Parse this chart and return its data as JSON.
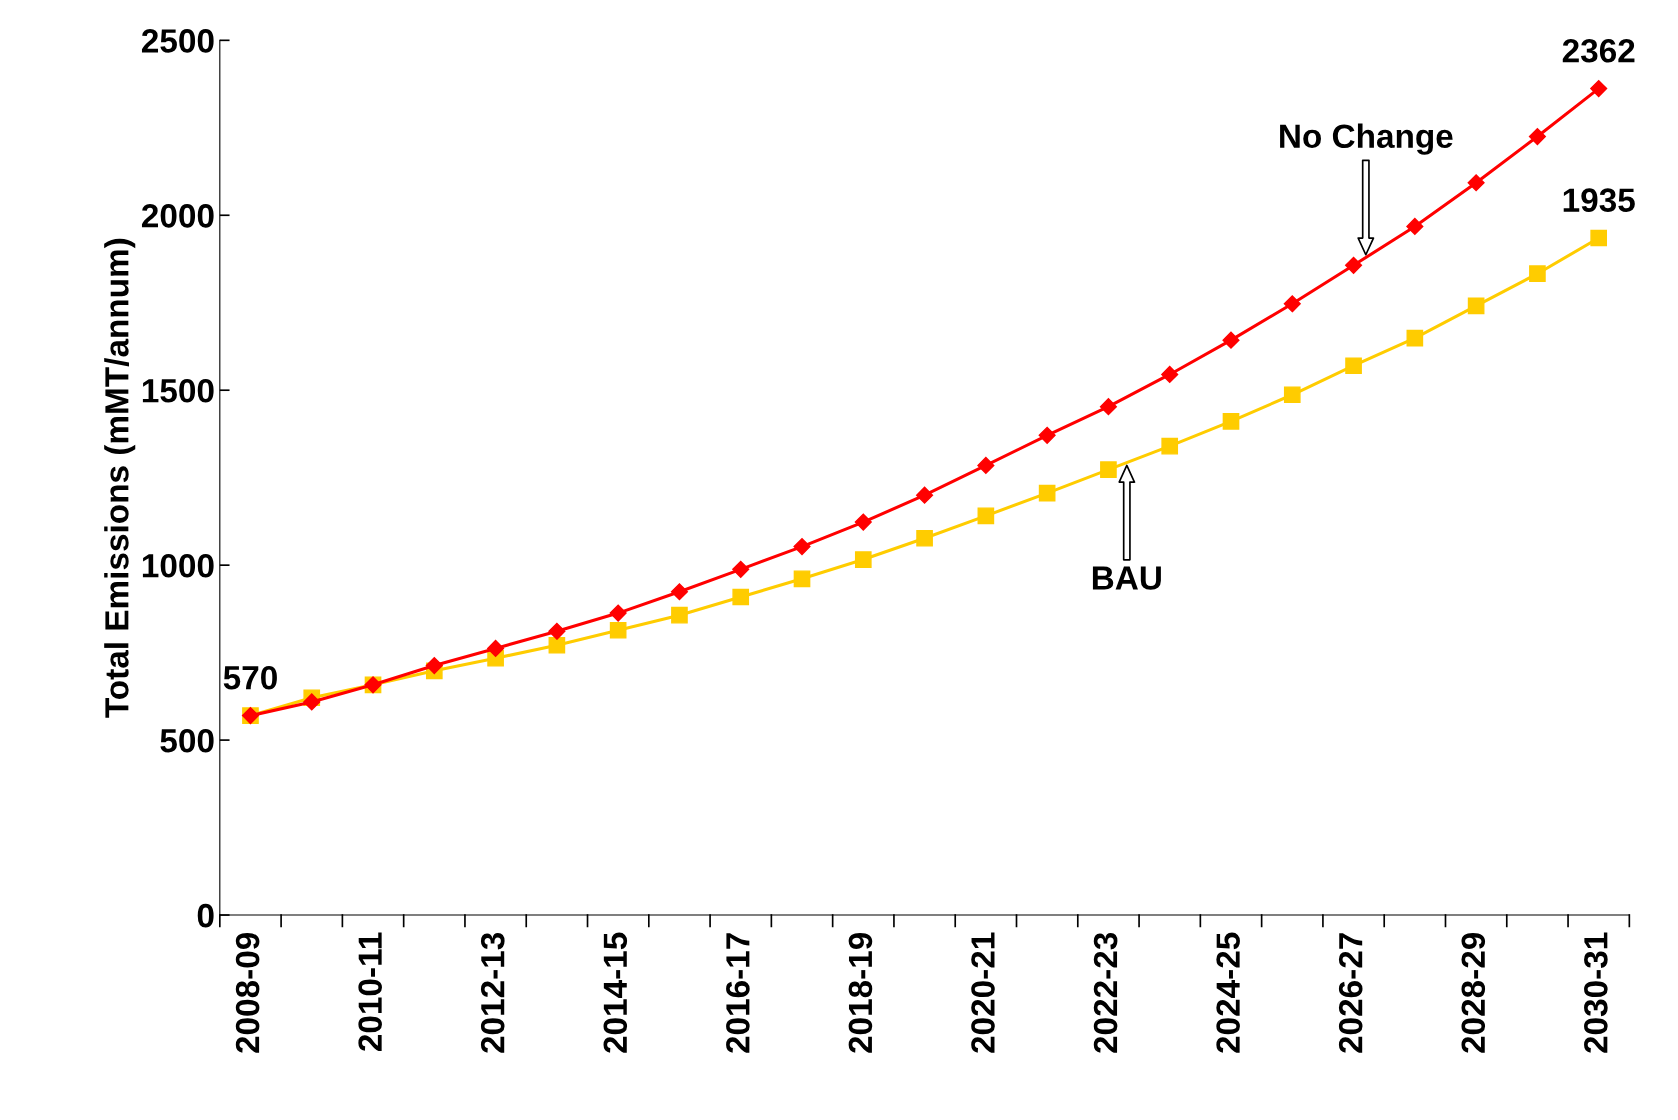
{
  "chart_data": {
    "type": "line",
    "ylabel": "Total Emissions (mMT/annum)",
    "categories": [
      "2008-09",
      null,
      "2010-11",
      null,
      "2012-13",
      null,
      "2014-15",
      null,
      "2016-17",
      null,
      "2018-19",
      null,
      "2020-21",
      null,
      "2022-23",
      null,
      "2024-25",
      null,
      "2026-27",
      null,
      "2028-29",
      null,
      "2030-31"
    ],
    "series": [
      {
        "name": "No Change",
        "color": "#ff0000",
        "marker": "diamond",
        "values": [
          570,
          609,
          658,
          713,
          762,
          811,
          863,
          924,
          988,
          1053,
          1123,
          1200,
          1285,
          1371,
          1453,
          1545,
          1643,
          1747,
          1857,
          1968,
          2093,
          2225,
          2362
        ],
        "value_labels": [
          "570",
          null,
          null,
          null,
          null,
          null,
          null,
          null,
          null,
          null,
          null,
          null,
          null,
          null,
          null,
          null,
          null,
          null,
          null,
          null,
          null,
          null,
          "2362"
        ]
      },
      {
        "name": "BAU",
        "color": "#ffcc00",
        "marker": "square",
        "values": [
          570,
          621,
          658,
          698,
          734,
          771,
          814,
          857,
          909,
          961,
          1016,
          1077,
          1141,
          1206,
          1273,
          1340,
          1411,
          1487,
          1570,
          1649,
          1741,
          1833,
          1935
        ],
        "value_labels": [
          null,
          null,
          null,
          null,
          null,
          null,
          null,
          null,
          null,
          null,
          null,
          null,
          null,
          null,
          null,
          null,
          null,
          null,
          null,
          null,
          null,
          null,
          "1935"
        ]
      }
    ],
    "ylim": [
      0,
      2500
    ],
    "yticks": [
      0,
      500,
      1000,
      1500,
      2000,
      2500
    ],
    "grid": false,
    "legend": false,
    "line_style": "solid"
  }
}
